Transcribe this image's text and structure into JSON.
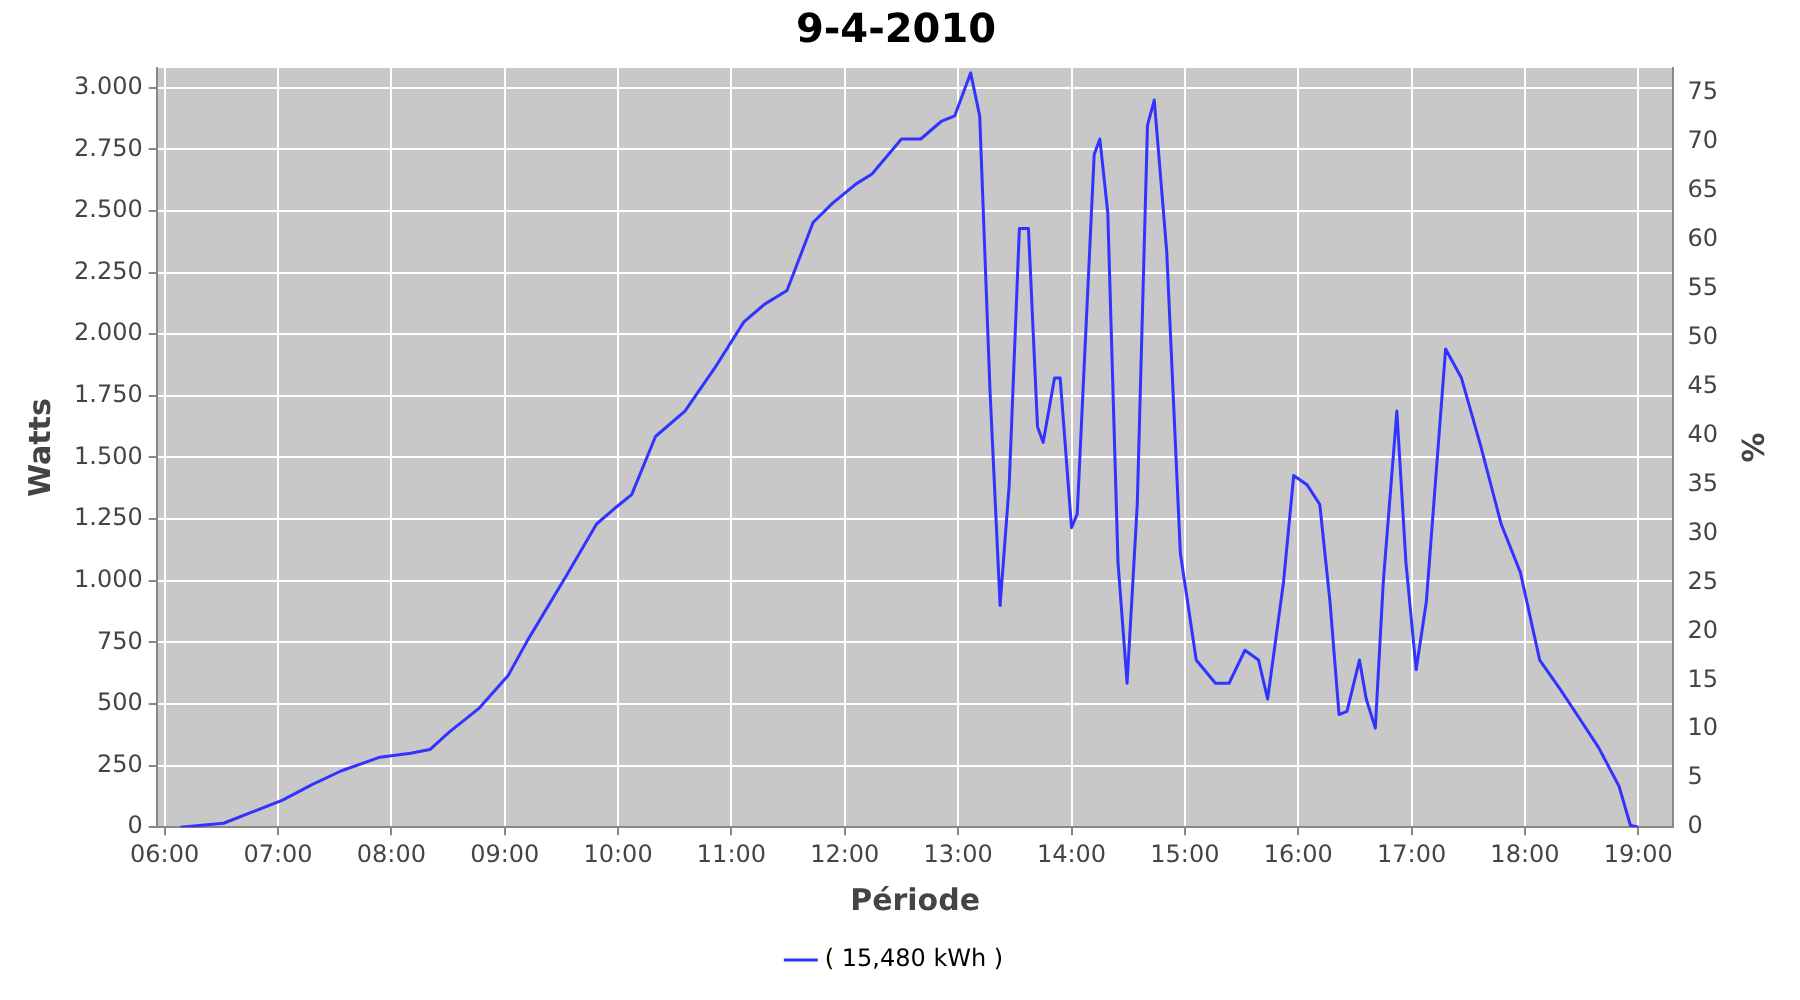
{
  "chart_data": {
    "type": "line",
    "title": "9-4-2010",
    "xlabel": "Période",
    "ylabel": "Watts",
    "y2label": "%",
    "xlim": [
      5.93,
      19.31
    ],
    "xticks": [
      {
        "value": 6,
        "label": "06:00"
      },
      {
        "value": 7,
        "label": "07:00"
      },
      {
        "value": 8,
        "label": "08:00"
      },
      {
        "value": 9,
        "label": "09:00"
      },
      {
        "value": 10,
        "label": "10:00"
      },
      {
        "value": 11,
        "label": "11:00"
      },
      {
        "value": 12,
        "label": "12:00"
      },
      {
        "value": 13,
        "label": "13:00"
      },
      {
        "value": 14,
        "label": "14:00"
      },
      {
        "value": 15,
        "label": "15:00"
      },
      {
        "value": 16,
        "label": "16:00"
      },
      {
        "value": 17,
        "label": "17:00"
      },
      {
        "value": 18,
        "label": "18:00"
      },
      {
        "value": 19,
        "label": "19:00"
      }
    ],
    "ylim": [
      0,
      3080
    ],
    "yticks": [
      0,
      250,
      500,
      750,
      {
        "value": 1000,
        "label": "1.000"
      },
      {
        "value": 1250,
        "label": "1.250"
      },
      {
        "value": 1500,
        "label": "1.500"
      },
      {
        "value": 1750,
        "label": "1.750"
      },
      {
        "value": 2000,
        "label": "2.000"
      },
      {
        "value": 2250,
        "label": "2.250"
      },
      {
        "value": 2500,
        "label": "2.500"
      },
      {
        "value": 2750,
        "label": "2.750"
      },
      {
        "value": 3000,
        "label": "3.000"
      }
    ],
    "y2lim": [
      0,
      77.5
    ],
    "y2ticks": [
      0,
      5,
      10,
      15,
      20,
      25,
      30,
      35,
      40,
      45,
      50,
      55,
      60,
      65,
      70,
      75
    ],
    "grid": true,
    "legend": "bottom",
    "marker": "none",
    "line_style": "solid",
    "series": [
      {
        "name": "( 15,480 kWh )",
        "color": "#3333ff",
        "x": [
          6.14,
          6.52,
          6.78,
          7.04,
          7.3,
          7.56,
          7.9,
          8.17,
          8.34,
          8.51,
          8.77,
          9.03,
          9.2,
          9.55,
          9.81,
          9.99,
          10.12,
          10.33,
          10.59,
          10.85,
          11.11,
          11.29,
          11.49,
          11.72,
          11.89,
          12.1,
          12.24,
          12.5,
          12.67,
          12.85,
          12.97,
          13.11,
          13.19,
          13.28,
          13.37,
          13.45,
          13.54,
          13.62,
          13.7,
          13.75,
          13.85,
          13.9,
          14.0,
          14.05,
          14.2,
          14.25,
          14.32,
          14.41,
          14.49,
          14.58,
          14.67,
          14.73,
          14.84,
          14.96,
          15.1,
          15.27,
          15.39,
          15.53,
          15.65,
          15.73,
          15.87,
          15.96,
          16.08,
          16.19,
          16.28,
          16.36,
          16.43,
          16.54,
          16.6,
          16.68,
          16.75,
          16.87,
          16.95,
          17.04,
          17.13,
          17.3,
          17.44,
          17.61,
          17.79,
          17.96,
          18.13,
          18.31,
          18.48,
          18.65,
          18.83,
          18.93,
          19.0
        ],
        "values": [
          0,
          16,
          63,
          110,
          173,
          229,
          284,
          300,
          315,
          386,
          481,
          615,
          757,
          1025,
          1230,
          1301,
          1349,
          1585,
          1688,
          1861,
          2050,
          2121,
          2177,
          2453,
          2531,
          2610,
          2650,
          2792,
          2792,
          2863,
          2886,
          3060,
          2886,
          1782,
          899,
          1388,
          2429,
          2429,
          1625,
          1561,
          1822,
          1822,
          1215,
          1270,
          2729,
          2792,
          2492,
          1073,
          584,
          1309,
          2847,
          2950,
          2334,
          1112,
          678,
          584,
          584,
          718,
          678,
          520,
          994,
          1427,
          1388,
          1309,
          915,
          457,
          470,
          678,
          520,
          402,
          994,
          1688,
          1073,
          639,
          915,
          1940,
          1822,
          1546,
          1230,
          1033,
          678,
          560,
          442,
          323,
          166,
          8,
          0
        ]
      }
    ]
  }
}
